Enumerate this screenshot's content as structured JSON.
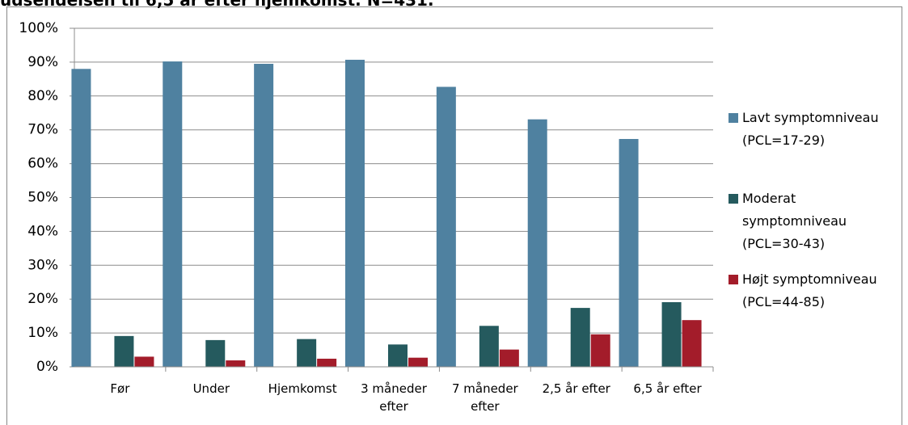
{
  "chart_data": {
    "type": "bar",
    "title": "udsendelsen til 6,5 år efter hjemkomst. N=431.",
    "categories": [
      "Før",
      "Under",
      "Hjemkomst",
      "3 måneder efter",
      "7 måneder efter",
      "2,5 år efter",
      "6,5 år efter"
    ],
    "series": [
      {
        "name": "Lavt symptomniveau (PCL=17-29)",
        "color": "#4f81a0",
        "values": [
          88.0,
          90.2,
          89.5,
          90.7,
          82.7,
          73.1,
          67.3
        ]
      },
      {
        "name": "Moderat symptomniveau (PCL=30-43)",
        "color": "#255a5e",
        "values": [
          9.1,
          7.9,
          8.2,
          6.6,
          12.1,
          17.4,
          19.1
        ]
      },
      {
        "name": "Højt symptomniveau (PCL=44-85)",
        "color": "#a31c2a",
        "values": [
          3.0,
          1.9,
          2.4,
          2.7,
          5.1,
          9.6,
          13.8
        ]
      }
    ],
    "ylim": [
      0,
      100
    ],
    "yticks": [
      {
        "value": 0,
        "label": "0%"
      },
      {
        "value": 10,
        "label": "10%"
      },
      {
        "value": 20,
        "label": "20%"
      },
      {
        "value": 30,
        "label": "30%"
      },
      {
        "value": 40,
        "label": "40%"
      },
      {
        "value": 50,
        "label": "50%"
      },
      {
        "value": 60,
        "label": "60%"
      },
      {
        "value": 70,
        "label": "70%"
      },
      {
        "value": 80,
        "label": "80%"
      },
      {
        "value": 90,
        "label": "90%"
      },
      {
        "value": 100,
        "label": "100%"
      }
    ],
    "grid": true,
    "legend": "right"
  }
}
